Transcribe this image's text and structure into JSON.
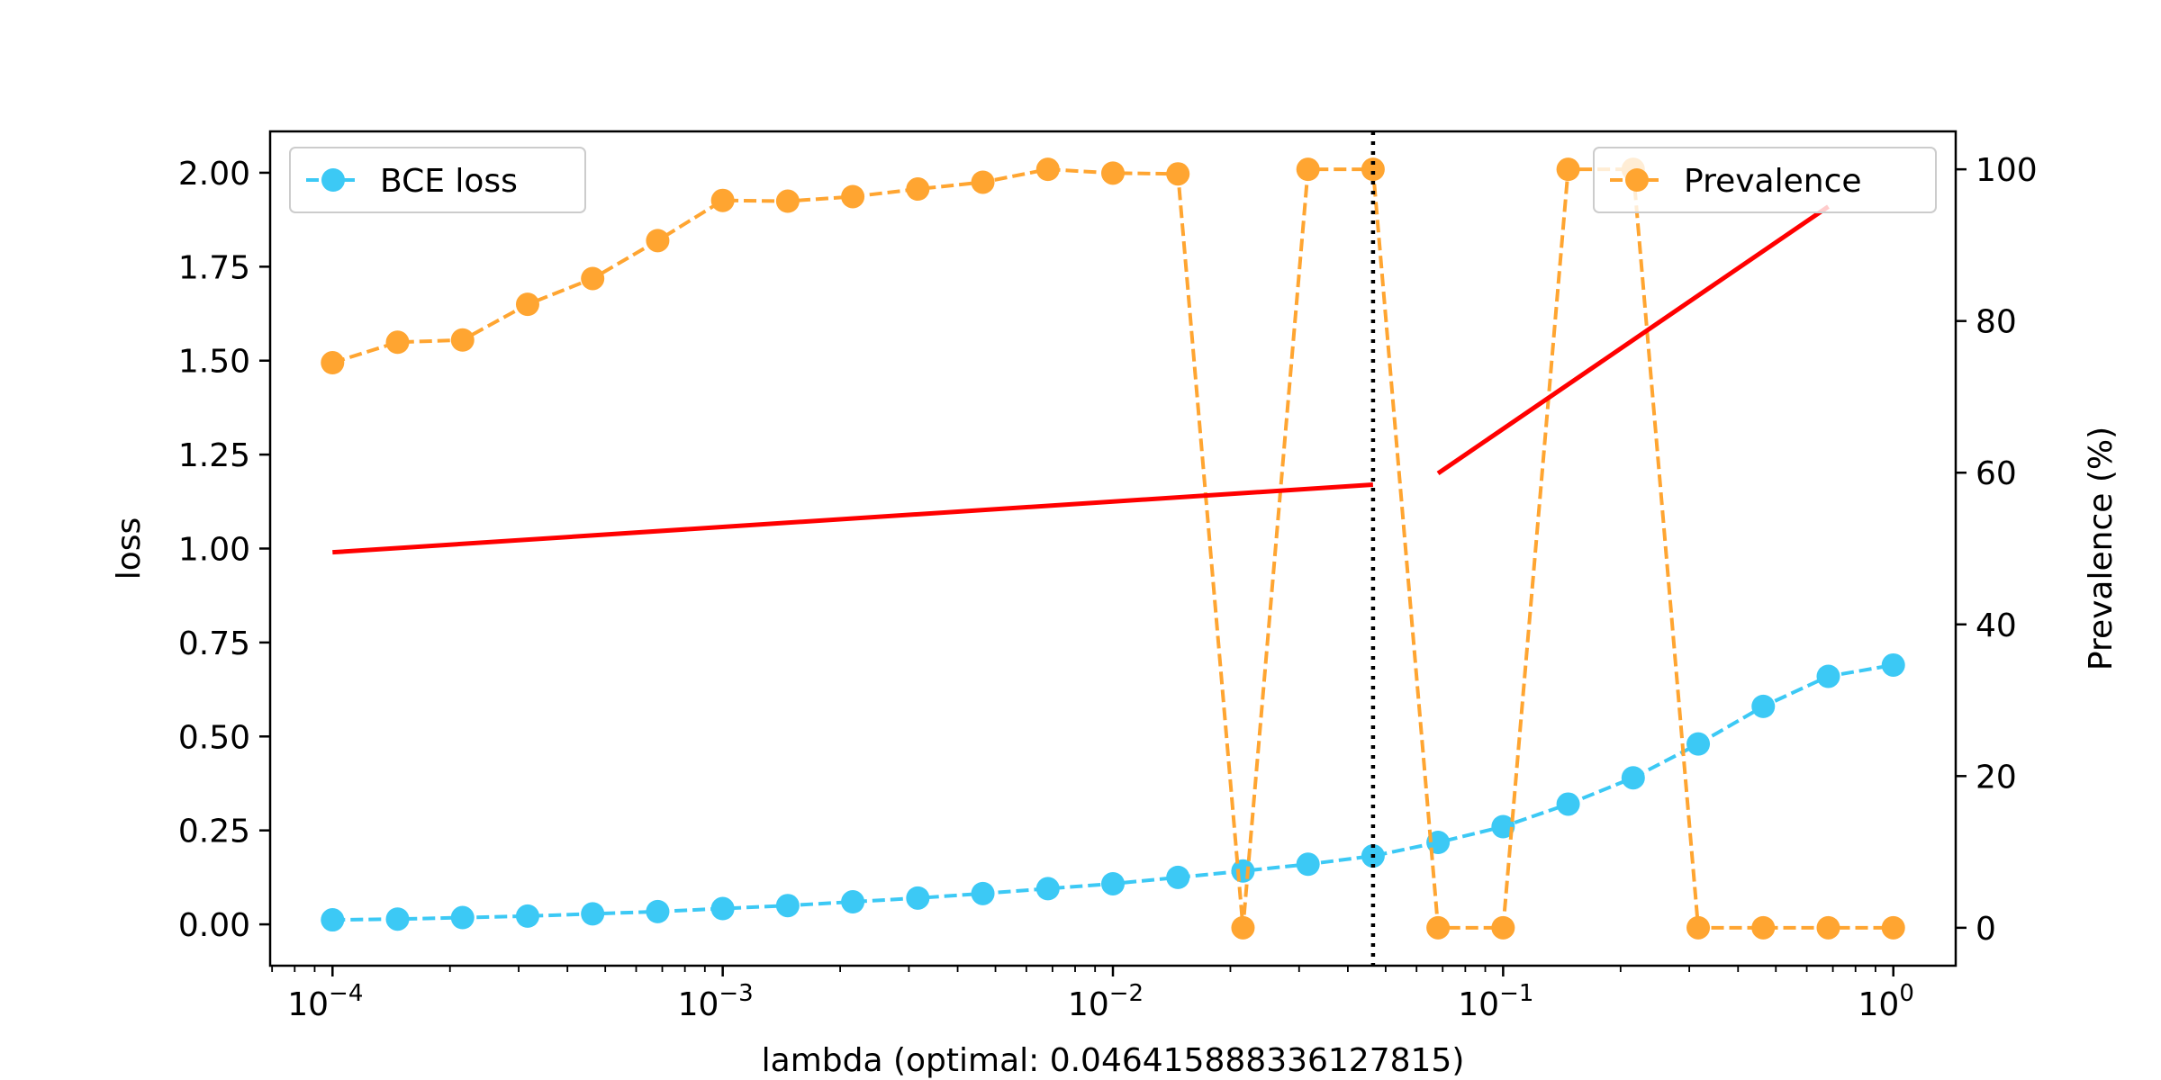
{
  "chart_data": {
    "type": "line",
    "xlabel": "lambda (optimal: 0.046415888336127815)",
    "ylabel": "loss",
    "y2label": "Prevalence (%)",
    "xscale": "log",
    "xlim": [
      6.92e-05,
      1.445
    ],
    "ylim": [
      -0.11,
      2.11
    ],
    "y2lim": [
      -5,
      105
    ],
    "x_ticks": [
      {
        "value": 0.0001,
        "base": "10",
        "exp": "−4"
      },
      {
        "value": 0.001,
        "base": "10",
        "exp": "−3"
      },
      {
        "value": 0.01,
        "base": "10",
        "exp": "−2"
      },
      {
        "value": 0.1,
        "base": "10",
        "exp": "−1"
      },
      {
        "value": 1,
        "base": "10",
        "exp": "0"
      }
    ],
    "y_ticks": [
      {
        "value": 0.0,
        "label": "0.00"
      },
      {
        "value": 0.25,
        "label": "0.25"
      },
      {
        "value": 0.5,
        "label": "0.50"
      },
      {
        "value": 0.75,
        "label": "0.75"
      },
      {
        "value": 1.0,
        "label": "1.00"
      },
      {
        "value": 1.25,
        "label": "1.25"
      },
      {
        "value": 1.5,
        "label": "1.50"
      },
      {
        "value": 1.75,
        "label": "1.75"
      },
      {
        "value": 2.0,
        "label": "2.00"
      }
    ],
    "y2_ticks": [
      {
        "value": 0,
        "label": "0"
      },
      {
        "value": 20,
        "label": "20"
      },
      {
        "value": 40,
        "label": "40"
      },
      {
        "value": 60,
        "label": "60"
      },
      {
        "value": 80,
        "label": "80"
      },
      {
        "value": 100,
        "label": "100"
      }
    ],
    "x": [
      0.0001,
      0.00014678,
      0.000215443,
      0.000316228,
      0.000464159,
      0.000681292,
      0.001,
      0.0014678,
      0.00215443,
      0.00316228,
      0.00464159,
      0.00681292,
      0.01,
      0.014678,
      0.0215443,
      0.0316228,
      0.0464159,
      0.0681292,
      0.1,
      0.14678,
      0.215443,
      0.316228,
      0.464159,
      0.681292,
      1.0
    ],
    "series": [
      {
        "name": "BCE loss",
        "axis": "left",
        "color": "#3cc9f5",
        "style": "dashed-marker",
        "values": [
          0.012,
          0.014,
          0.018,
          0.022,
          0.028,
          0.034,
          0.042,
          0.05,
          0.06,
          0.07,
          0.082,
          0.095,
          0.108,
          0.125,
          0.142,
          0.16,
          0.182,
          0.218,
          0.26,
          0.32,
          0.39,
          0.48,
          0.58,
          0.66,
          0.69
        ]
      },
      {
        "name": "Prevalence",
        "axis": "right",
        "color": "#ffa531",
        "style": "dashed-marker",
        "values": [
          74.5,
          77.2,
          77.5,
          82.2,
          85.6,
          90.6,
          95.9,
          95.8,
          96.4,
          97.4,
          98.3,
          100.0,
          99.5,
          99.4,
          0.0,
          100.0,
          100.0,
          0.0,
          0.0,
          100.0,
          100.0,
          0.0,
          0.0,
          0.0,
          0.0
        ]
      }
    ],
    "annotations": {
      "optimal_line_x": 0.046415888336127815,
      "optimal_line_color": "#000000",
      "fit_line_color": "#ff0000",
      "fit_segments": [
        {
          "x": [
            0.0001,
            0.0464
          ],
          "y": [
            0.99,
            1.17
          ]
        },
        {
          "x": [
            0.0681,
            0.6813
          ],
          "y": [
            1.2,
            1.91
          ]
        }
      ]
    },
    "legends": [
      {
        "placement": "top-left",
        "series": "BCE loss"
      },
      {
        "placement": "top-right",
        "series": "Prevalence"
      }
    ],
    "grid": false
  }
}
